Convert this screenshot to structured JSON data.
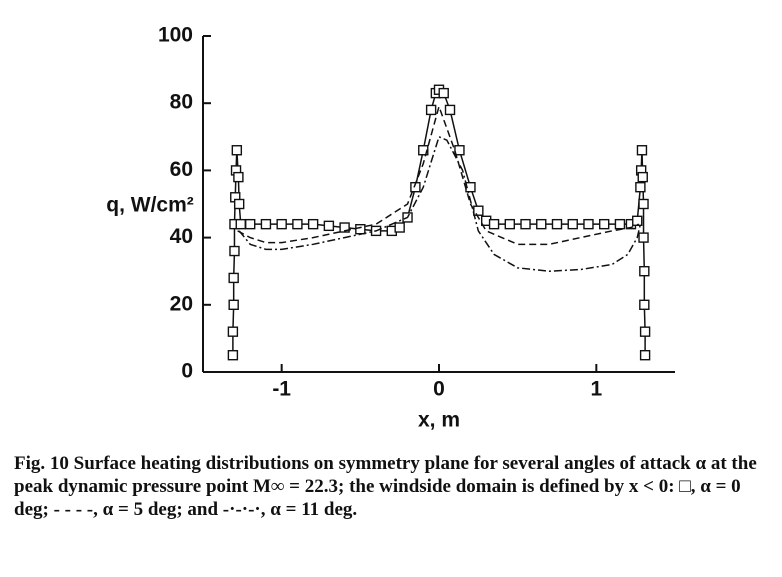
{
  "chart_data": {
    "type": "line",
    "xlabel": "x, m",
    "ylabel": "q, W/cm²",
    "caption": "Fig. 10   Surface heating distributions on symmetry plane for several angles of attack α at the peak dynamic pressure point M∞ = 22.3; the windside domain is defined by x < 0: □, α = 0 deg; - - - -, α = 5 deg; and -·-·-·, α = 11 deg.",
    "xlim": [
      -1.5,
      1.5
    ],
    "xticks": [
      -1,
      0,
      1
    ],
    "ylim": [
      0,
      100
    ],
    "yticks": [
      0,
      20,
      40,
      60,
      80,
      100
    ],
    "series": [
      {
        "color": "#111111",
        "dash": "solid",
        "marker": "square",
        "x": [
          -1.31,
          -1.31,
          -1.305,
          -1.305,
          -1.3,
          -1.3,
          -1.295,
          -1.29,
          -1.285,
          -1.275,
          -1.27,
          -1.26,
          -1.2,
          -1.1,
          -1.0,
          -0.9,
          -0.8,
          -0.7,
          -0.6,
          -0.5,
          -0.4,
          -0.3,
          -0.25,
          -0.2,
          -0.15,
          -0.1,
          -0.05,
          -0.02,
          0,
          0.03,
          0.07,
          0.13,
          0.2,
          0.25,
          0.3,
          0.35,
          0.45,
          0.55,
          0.65,
          0.75,
          0.85,
          0.95,
          1.05,
          1.15,
          1.22,
          1.26,
          1.28,
          1.285,
          1.29,
          1.295,
          1.3,
          1.3,
          1.305,
          1.305,
          1.31,
          1.31
        ],
        "values": [
          5,
          12,
          20,
          28,
          36,
          44,
          52,
          60,
          66,
          58,
          50,
          44,
          44,
          44,
          44,
          44,
          44,
          43.5,
          43,
          42.5,
          42,
          42,
          43,
          46,
          55,
          66,
          78,
          83,
          84,
          83,
          78,
          66,
          55,
          48,
          45,
          44,
          44,
          44,
          44,
          44,
          44,
          44,
          44,
          44,
          44,
          45,
          55,
          60,
          66,
          58,
          50,
          40,
          30,
          20,
          12,
          5
        ]
      },
      {
        "color": "#111111",
        "dash": "dashed",
        "marker": "none",
        "x": [
          -1.28,
          -1.2,
          -1.1,
          -1.0,
          -0.8,
          -0.6,
          -0.4,
          -0.2,
          -0.1,
          0,
          0.1,
          0.2,
          0.3,
          0.5,
          0.7,
          0.9,
          1.1,
          1.22,
          1.27
        ],
        "values": [
          42,
          40,
          38.5,
          38.5,
          40,
          42,
          44,
          50,
          62,
          79,
          66,
          50,
          42,
          38,
          38,
          40,
          42,
          43,
          44
        ]
      },
      {
        "color": "#111111",
        "dash": "dashdot",
        "marker": "none",
        "x": [
          -1.27,
          -1.2,
          -1.1,
          -1.0,
          -0.8,
          -0.6,
          -0.4,
          -0.2,
          -0.1,
          0,
          0.05,
          0.15,
          0.25,
          0.35,
          0.5,
          0.7,
          0.9,
          1.1,
          1.2,
          1.26,
          1.28
        ],
        "values": [
          42,
          38,
          36.5,
          36.5,
          38,
          40,
          42,
          46,
          55,
          70,
          69,
          60,
          42,
          35,
          31,
          30,
          30.5,
          32,
          35,
          40,
          44
        ]
      }
    ]
  }
}
